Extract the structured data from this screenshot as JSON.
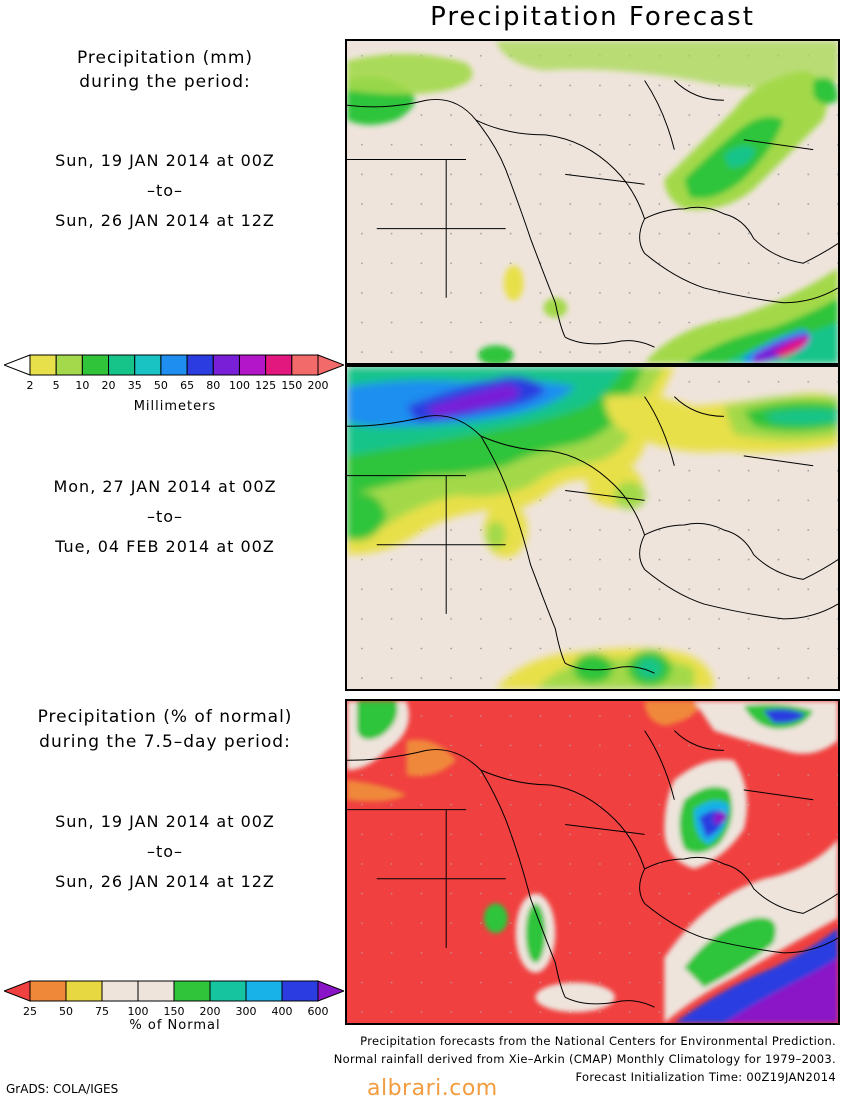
{
  "title": "Precipitation Forecast",
  "panel1_label": {
    "heading_line1": "Precipitation (mm)",
    "heading_line2": "during the period:",
    "start": "Sun, 19 JAN 2014 at 00Z",
    "to": "–to–",
    "end": "Sun, 26 JAN 2014 at 12Z"
  },
  "panel2_label": {
    "start": "Mon, 27 JAN 2014 at 00Z",
    "to": "–to–",
    "end": "Tue, 04 FEB 2014 at 00Z"
  },
  "panel3_label": {
    "heading_line1": "Precipitation (% of normal)",
    "heading_line2": "during the 7.5–day period:",
    "start": "Sun, 19 JAN 2014 at 00Z",
    "to": "–to–",
    "end": "Sun, 26 JAN 2014 at 12Z"
  },
  "colorbar_mm": {
    "title": "Millimeters",
    "ticks": [
      "2",
      "5",
      "10",
      "20",
      "35",
      "50",
      "65",
      "80",
      "100",
      "125",
      "150",
      "200"
    ],
    "colors": [
      "#e8e04a",
      "#a3d94a",
      "#2fc43a",
      "#16c48a",
      "#19c3c3",
      "#1e8ff0",
      "#2b3ce0",
      "#7a1fd8",
      "#b315c9",
      "#e3187f",
      "#f26a6a"
    ],
    "under_color": "#ffffff",
    "over_color": "#f26a6a"
  },
  "colorbar_pct": {
    "title": "% of Normal",
    "ticks": [
      "25",
      "50",
      "75",
      "100",
      "150",
      "200",
      "300",
      "400",
      "600"
    ],
    "colors": [
      "#f0883a",
      "#e7d842",
      "#eee4dc",
      "#eee4dc",
      "#2fc43a",
      "#16c4a0",
      "#19b2e8",
      "#2b3ce0"
    ],
    "under_color": "#f0403f",
    "over_color": "#8a14c8"
  },
  "map_colors": {
    "land": "#efe4dc",
    "deficit": "#f0403f",
    "border": "#000000"
  },
  "credits": {
    "line1": "Precipitation forecasts from the National Centers for Environmental Prediction.",
    "line2": "Normal rainfall derived from Xie–Arkin (CMAP) Monthly Climatology for 1979–2003.",
    "line3": "Forecast Initialization Time: 00Z19JAN2014"
  },
  "software": "GrADS: COLA/IGES",
  "watermark": "albrari.com"
}
